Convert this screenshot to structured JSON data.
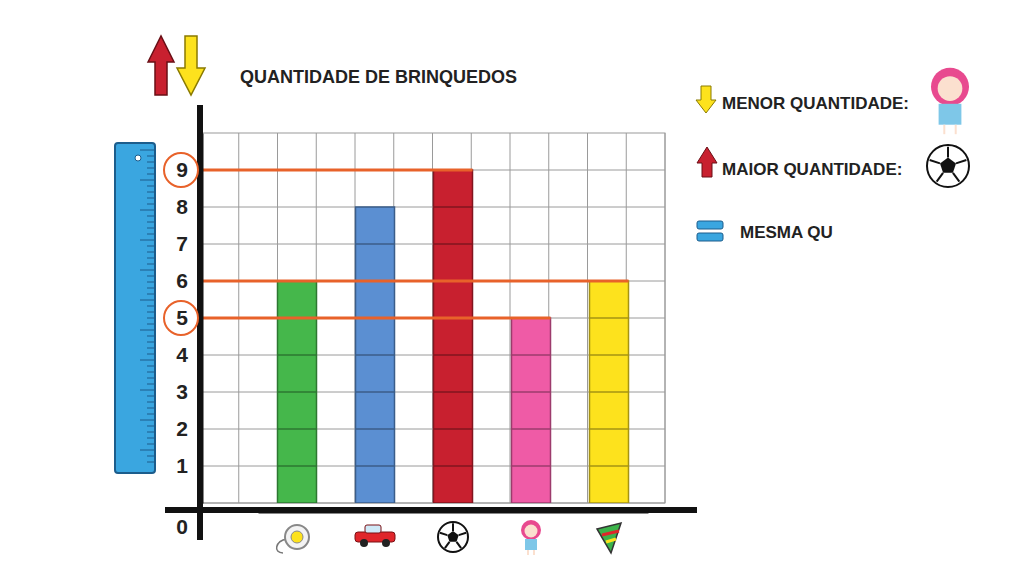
{
  "chart_data": {
    "type": "bar",
    "title": "QUANTIDADE DE BRINQUEDOS",
    "categories": [
      null,
      null,
      null,
      null,
      null
    ],
    "values": [
      6,
      8,
      9,
      5,
      6
    ],
    "colors": [
      "#45b74b",
      "#5b8fd2",
      "#c8202f",
      "#ef5ba6",
      "#fde21d"
    ],
    "ylim": [
      0,
      10
    ],
    "yticks": [
      0,
      1,
      2,
      3,
      4,
      5,
      6,
      7,
      8,
      9
    ],
    "grid": true,
    "tick_labels": "y",
    "reference_lines": [
      9,
      6,
      5
    ],
    "circled_ticks": [
      9,
      5
    ],
    "annotations": [
      "MENOR QUANTIDADE:",
      "MAIOR QUANTIDADE:",
      "MESMA QU"
    ]
  }
}
